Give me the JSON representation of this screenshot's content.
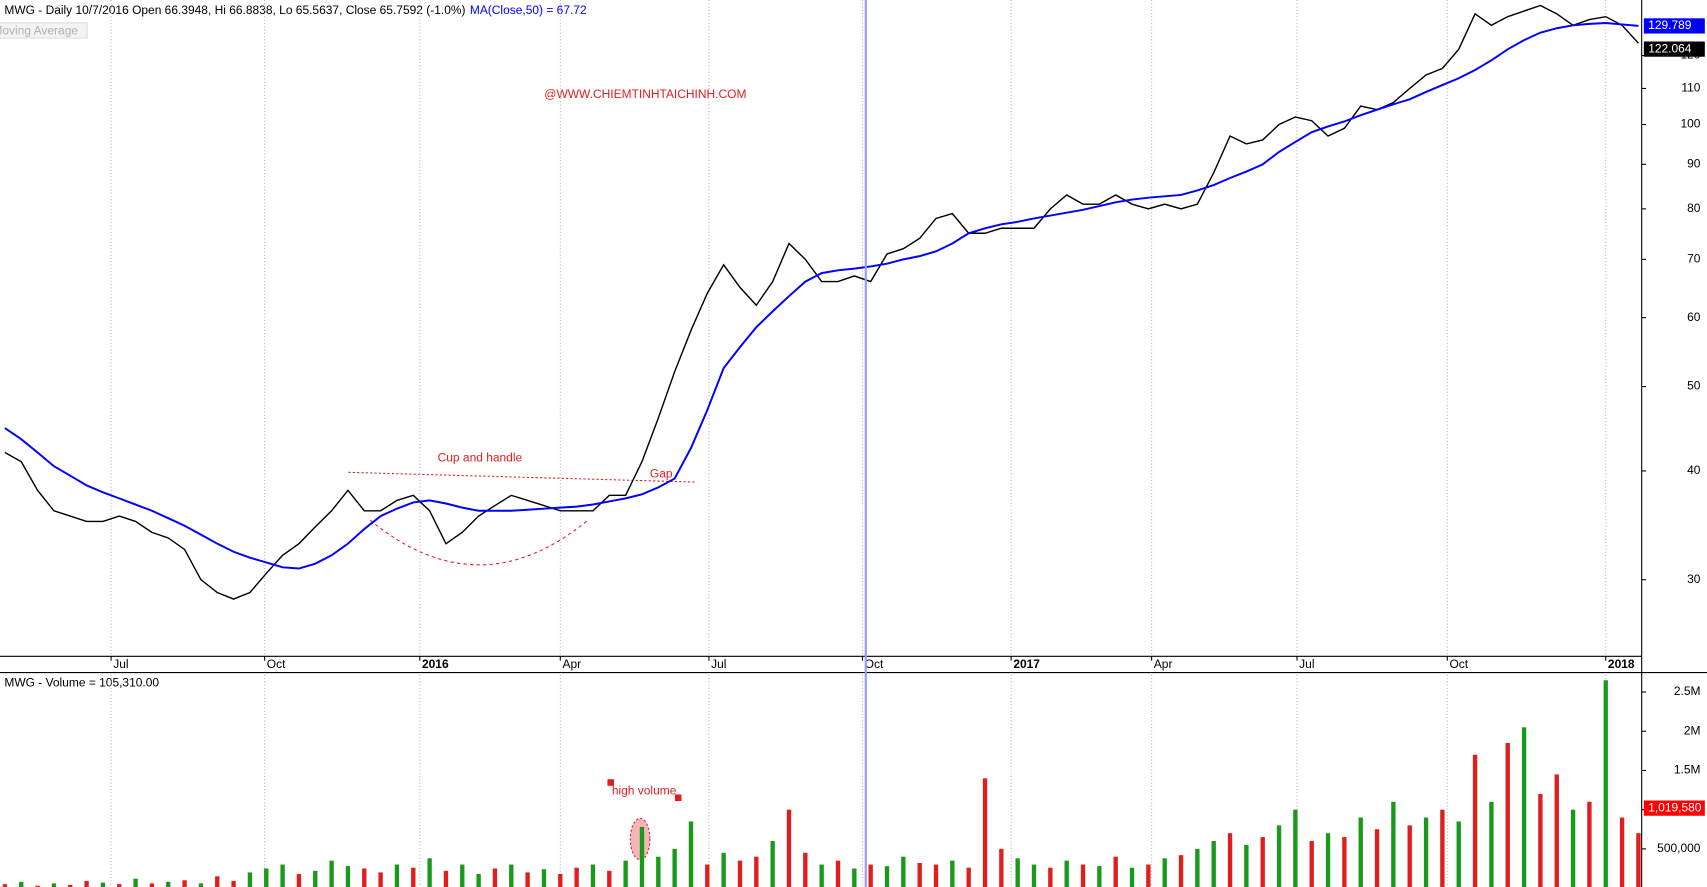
{
  "chart_data": [
    {
      "type": "line",
      "title": "MWG - Daily 10/7/2016 Open 66.3948, Hi 66.8838, Lo 65.5637, Close 65.7592 (-1.0%)",
      "ghost_label": "Moving Average",
      "annotations": [
        "@WWW.CHIEMTINHTAICHINH.COM",
        "Cup and handle",
        "Gap"
      ],
      "categories": [
        null,
        null,
        null,
        null,
        null,
        null,
        null,
        null,
        null,
        null,
        null,
        null,
        null,
        null,
        null,
        null,
        null,
        null,
        null,
        null,
        null,
        null,
        null,
        null,
        null,
        null,
        null,
        null,
        null,
        null,
        null,
        null,
        null,
        null,
        null,
        null,
        null,
        null,
        null,
        null,
        null,
        null,
        null,
        null,
        null,
        null,
        null,
        null,
        null,
        null,
        null,
        null,
        null,
        null,
        null,
        null,
        null,
        null,
        null,
        null,
        null,
        null,
        null,
        null,
        null,
        null,
        null,
        null,
        null,
        null,
        null,
        null,
        null,
        null,
        null,
        null,
        null,
        null,
        null,
        null,
        null,
        null,
        null,
        null,
        null,
        null,
        null,
        null,
        null,
        null,
        null,
        null,
        null,
        null,
        null,
        null,
        null,
        null,
        null,
        null,
        null
      ],
      "series": [
        {
          "color": "#000000",
          "values": [
            42,
            41,
            38,
            36,
            35.5,
            35,
            35,
            35.5,
            35,
            34,
            33.5,
            32.5,
            30,
            29,
            28.5,
            29,
            30.5,
            32,
            33,
            34.5,
            36,
            38,
            36,
            36,
            37,
            37.5,
            36,
            33,
            34,
            35.5,
            36.5,
            37.5,
            37,
            36.5,
            36,
            36,
            36,
            37.5,
            37.5,
            41,
            46,
            52,
            58,
            64,
            69,
            65,
            62,
            66,
            73,
            70,
            66,
            66,
            67,
            66,
            71,
            72,
            74,
            78,
            79,
            75,
            75,
            76,
            76,
            76,
            80,
            83,
            81,
            81,
            83,
            81,
            80,
            81,
            80,
            81,
            88,
            97,
            95,
            96,
            100,
            102,
            101,
            97,
            99,
            105,
            104,
            106,
            110,
            114,
            116,
            122,
            134,
            130,
            133,
            135,
            137,
            134,
            130,
            132,
            133,
            130,
            124
          ]
        },
        {
          "name": "MA(Close,50) = 67.72",
          "color": "#0000ff",
          "values": [
            44.8,
            43.5,
            42,
            40.5,
            39.5,
            38.5,
            37.8,
            37.2,
            36.6,
            36,
            35.3,
            34.6,
            33.8,
            33,
            32.3,
            31.8,
            31.4,
            31,
            30.9,
            31.3,
            32,
            33,
            34.3,
            35.5,
            36.2,
            36.8,
            37,
            36.7,
            36.3,
            36,
            36,
            36,
            36.1,
            36.2,
            36.3,
            36.4,
            36.6,
            36.9,
            37.2,
            37.6,
            38.3,
            39.2,
            42.5,
            47,
            52.5,
            55.5,
            58.5,
            61,
            63.5,
            66,
            67.5,
            68,
            68.3,
            68.7,
            69.2,
            70,
            70.6,
            71.5,
            73,
            75,
            76,
            76.8,
            77.3,
            78,
            78.6,
            79.2,
            79.8,
            80.6,
            81.4,
            82,
            82.4,
            82.7,
            83,
            84,
            85.2,
            86.8,
            88.3,
            90,
            93,
            95.5,
            98,
            99.5,
            100.8,
            102.5,
            104,
            105.5,
            106.9,
            109,
            111,
            113,
            115.5,
            118.5,
            122,
            125,
            127.5,
            129,
            130,
            130.5,
            130.8,
            130.3,
            129.8
          ]
        }
      ],
      "log_scale": true,
      "xlim": [
        -0.3,
        100.2
      ],
      "xticks": [
        {
          "value": 6.5,
          "label": "Jul"
        },
        {
          "value": 15.9,
          "label": "Oct"
        },
        {
          "value": 25.4,
          "label": "2016"
        },
        {
          "value": 34,
          "label": "Apr"
        },
        {
          "value": 43.1,
          "label": "Jul"
        },
        {
          "value": 52.5,
          "label": "Oct"
        },
        {
          "value": 61.6,
          "label": "2017"
        },
        {
          "value": 70.2,
          "label": "Apr"
        },
        {
          "value": 79.1,
          "label": "Jul"
        },
        {
          "value": 88.3,
          "label": "Oct"
        },
        {
          "value": 98,
          "label": "2018"
        }
      ],
      "ylim": [
        24.5,
        139
      ],
      "yticks": [
        30,
        40,
        50,
        60,
        70,
        80,
        90,
        100,
        110,
        120
      ],
      "grid": "x",
      "cursor": 52.7,
      "cursor_color": "#9a9aff",
      "end_labels": [
        {
          "value": 129.789,
          "color": "#0000ff"
        },
        {
          "value": 122.064,
          "color": "#000000"
        }
      ]
    },
    {
      "type": "bar",
      "title": "MWG - Volume = 105,310.00",
      "annotations": [
        "high volume"
      ],
      "values": [
        50000,
        80000,
        30000,
        60000,
        40000,
        90000,
        70000,
        50000,
        120000,
        60000,
        80000,
        100000,
        60000,
        150000,
        90000,
        200000,
        250000,
        300000,
        180000,
        220000,
        350000,
        280000,
        250000,
        200000,
        300000,
        260000,
        380000,
        220000,
        300000,
        180000,
        250000,
        300000,
        200000,
        240000,
        180000,
        260000,
        300000,
        220000,
        350000,
        780000,
        400000,
        500000,
        850000,
        300000,
        450000,
        350000,
        400000,
        600000,
        1000000,
        450000,
        300000,
        350000,
        250000,
        300000,
        280000,
        400000,
        320000,
        300000,
        350000,
        260000,
        1400000,
        500000,
        380000,
        300000,
        260000,
        350000,
        300000,
        280000,
        400000,
        260000,
        300000,
        380000,
        420000,
        500000,
        600000,
        700000,
        550000,
        650000,
        800000,
        1000000,
        600000,
        700000,
        650000,
        900000,
        750000,
        1100000,
        800000,
        900000,
        1000000,
        850000,
        1700000,
        1100000,
        1850000,
        2050000,
        1200000,
        1450000,
        1000000,
        1100000,
        2650000,
        900000,
        700000
      ],
      "colors": [
        "#e01e1e",
        "#1a9a1a",
        "#e01e1e",
        "#1a9a1a",
        "#e01e1e",
        "#e01e1e",
        "#1a9a1a",
        "#e01e1e",
        "#1a9a1a",
        "#e01e1e",
        "#1a9a1a",
        "#e01e1e",
        "#1a9a1a",
        "#e01e1e",
        "#e01e1e",
        "#1a9a1a",
        "#1a9a1a",
        "#1a9a1a",
        "#e01e1e",
        "#1a9a1a",
        "#1a9a1a",
        "#1a9a1a",
        "#e01e1e",
        "#e01e1e",
        "#1a9a1a",
        "#e01e1e",
        "#1a9a1a",
        "#e01e1e",
        "#1a9a1a",
        "#1a9a1a",
        "#e01e1e",
        "#1a9a1a",
        "#e01e1e",
        "#1a9a1a",
        "#e01e1e",
        "#e01e1e",
        "#1a9a1a",
        "#e01e1e",
        "#1a9a1a",
        "#1a9a1a",
        "#1a9a1a",
        "#1a9a1a",
        "#1a9a1a",
        "#e01e1e",
        "#1a9a1a",
        "#e01e1e",
        "#e01e1e",
        "#1a9a1a",
        "#e01e1e",
        "#e01e1e",
        "#1a9a1a",
        "#e01e1e",
        "#1a9a1a",
        "#e01e1e",
        "#1a9a1a",
        "#1a9a1a",
        "#e01e1e",
        "#e01e1e",
        "#1a9a1a",
        "#e01e1e",
        "#e01e1e",
        "#e01e1e",
        "#1a9a1a",
        "#1a9a1a",
        "#e01e1e",
        "#1a9a1a",
        "#e01e1e",
        "#1a9a1a",
        "#e01e1e",
        "#1a9a1a",
        "#e01e1e",
        "#1a9a1a",
        "#e01e1e",
        "#1a9a1a",
        "#1a9a1a",
        "#e01e1e",
        "#1a9a1a",
        "#e01e1e",
        "#1a9a1a",
        "#1a9a1a",
        "#e01e1e",
        "#1a9a1a",
        "#e01e1e",
        "#1a9a1a",
        "#e01e1e",
        "#1a9a1a",
        "#e01e1e",
        "#1a9a1a",
        "#e01e1e",
        "#1a9a1a",
        "#e01e1e",
        "#1a9a1a",
        "#e01e1e",
        "#1a9a1a",
        "#e01e1e",
        "#e01e1e",
        "#1a9a1a",
        "#e01e1e",
        "#1a9a1a",
        "#e01e1e",
        "#e01e1e"
      ],
      "xlim": [
        -0.3,
        100.2
      ],
      "ylim": [
        0,
        2720000
      ],
      "yticks": [
        {
          "value": 500000,
          "label": "500,000"
        },
        {
          "value": 1000000,
          "label": "1M"
        },
        {
          "value": 1500000,
          "label": "1.5M"
        },
        {
          "value": 2000000,
          "label": "2M"
        },
        {
          "value": 2500000,
          "label": "2.5M"
        }
      ],
      "end_labels": [
        {
          "value": 1019580,
          "label": "1,019,580",
          "color": "#ff0000"
        }
      ]
    }
  ]
}
